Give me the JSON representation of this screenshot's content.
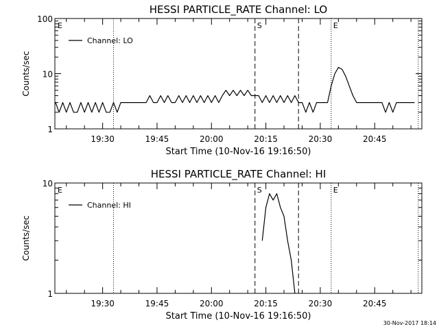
{
  "footer_timestamp": "30-Nov-2017 18:14",
  "chart_data": [
    {
      "type": "line",
      "title": "HESSI PARTICLE_RATE Channel: LO",
      "xlabel": "Start Time (10-Nov-16 19:16:50)",
      "ylabel": "Counts/sec",
      "yscale": "log",
      "ylim": [
        1,
        100
      ],
      "y_ticks": [
        1,
        10,
        100
      ],
      "y_tick_labels": [
        "1",
        "10",
        "100"
      ],
      "xlim": [
        "19:16:50",
        "20:58:00"
      ],
      "x_ticks": [
        "19:30",
        "19:45",
        "20:00",
        "20:15",
        "20:30",
        "20:45"
      ],
      "legend": "top-left",
      "series": [
        {
          "name": "Channel: LO",
          "x": [
            "19:17",
            "19:18",
            "19:19",
            "19:20",
            "19:21",
            "19:22",
            "19:23",
            "19:24",
            "19:25",
            "19:26",
            "19:27",
            "19:28",
            "19:29",
            "19:30",
            "19:31",
            "19:32",
            "19:33",
            "19:34",
            "19:35",
            "19:36",
            "19:37",
            "19:38",
            "19:39",
            "19:40",
            "19:41",
            "19:42",
            "19:43",
            "19:44",
            "19:45",
            "19:46",
            "19:47",
            "19:48",
            "19:49",
            "19:50",
            "19:51",
            "19:52",
            "19:53",
            "19:54",
            "19:55",
            "19:56",
            "19:57",
            "19:58",
            "19:59",
            "20:00",
            "20:01",
            "20:02",
            "20:03",
            "20:04",
            "20:05",
            "20:06",
            "20:07",
            "20:08",
            "20:09",
            "20:10",
            "20:11",
            "20:12",
            "20:13",
            "20:14",
            "20:15",
            "20:16",
            "20:17",
            "20:18",
            "20:19",
            "20:20",
            "20:21",
            "20:22",
            "20:23",
            "20:24",
            "20:25",
            "20:26",
            "20:27",
            "20:28",
            "20:29",
            "20:30",
            "20:31",
            "20:32",
            "20:33",
            "20:34",
            "20:35",
            "20:36",
            "20:37",
            "20:38",
            "20:39",
            "20:40",
            "20:41",
            "20:42",
            "20:43",
            "20:44",
            "20:45",
            "20:46",
            "20:47",
            "20:48",
            "20:49",
            "20:50",
            "20:51",
            "20:52",
            "20:53",
            "20:54",
            "20:55",
            "20:56"
          ],
          "values": [
            3,
            2,
            3,
            2,
            3,
            2,
            2,
            3,
            2,
            3,
            2,
            3,
            2,
            3,
            2,
            2,
            3,
            2,
            3,
            3,
            3,
            3,
            3,
            3,
            3,
            3,
            4,
            3,
            3,
            4,
            3,
            4,
            3,
            3,
            4,
            3,
            4,
            3,
            4,
            3,
            4,
            3,
            4,
            3,
            4,
            3,
            4,
            5,
            4,
            5,
            4,
            5,
            4,
            5,
            4,
            4,
            4,
            3,
            4,
            3,
            4,
            3,
            4,
            3,
            4,
            3,
            4,
            3,
            3,
            2,
            3,
            2,
            3,
            3,
            3,
            3,
            6,
            10,
            13,
            12,
            9,
            6,
            4,
            3,
            3,
            3,
            3,
            3,
            3,
            3,
            3,
            2,
            3,
            2,
            3,
            3,
            3,
            3,
            3,
            3
          ]
        }
      ],
      "markers": {
        "dotted": [
          "19:33",
          "20:33",
          "20:57"
        ],
        "dashed": [
          "20:12",
          "20:24"
        ],
        "labels": [
          "E",
          "S",
          "E"
        ]
      }
    },
    {
      "type": "line",
      "title": "HESSI PARTICLE_RATE Channel: HI",
      "xlabel": "Start Time (10-Nov-16 19:16:50)",
      "ylabel": "Counts/sec",
      "yscale": "log",
      "ylim": [
        1,
        10
      ],
      "y_ticks": [
        1,
        10
      ],
      "y_tick_labels": [
        "1",
        "10"
      ],
      "xlim": [
        "19:16:50",
        "20:58:00"
      ],
      "x_ticks": [
        "19:30",
        "19:45",
        "20:00",
        "20:15",
        "20:30",
        "20:45"
      ],
      "legend": "top-left",
      "series": [
        {
          "name": "Channel: HI",
          "x": [
            "20:14",
            "20:15",
            "20:16",
            "20:17",
            "20:18",
            "20:19",
            "20:20",
            "20:21",
            "20:22",
            "20:23"
          ],
          "values": [
            3,
            6,
            8,
            7,
            8,
            6,
            5,
            3,
            2,
            1
          ]
        }
      ],
      "markers": {
        "dotted": [
          "19:33",
          "20:33",
          "20:57"
        ],
        "dashed": [
          "20:12",
          "20:24"
        ],
        "labels": [
          "E",
          "S",
          "E"
        ]
      }
    }
  ]
}
